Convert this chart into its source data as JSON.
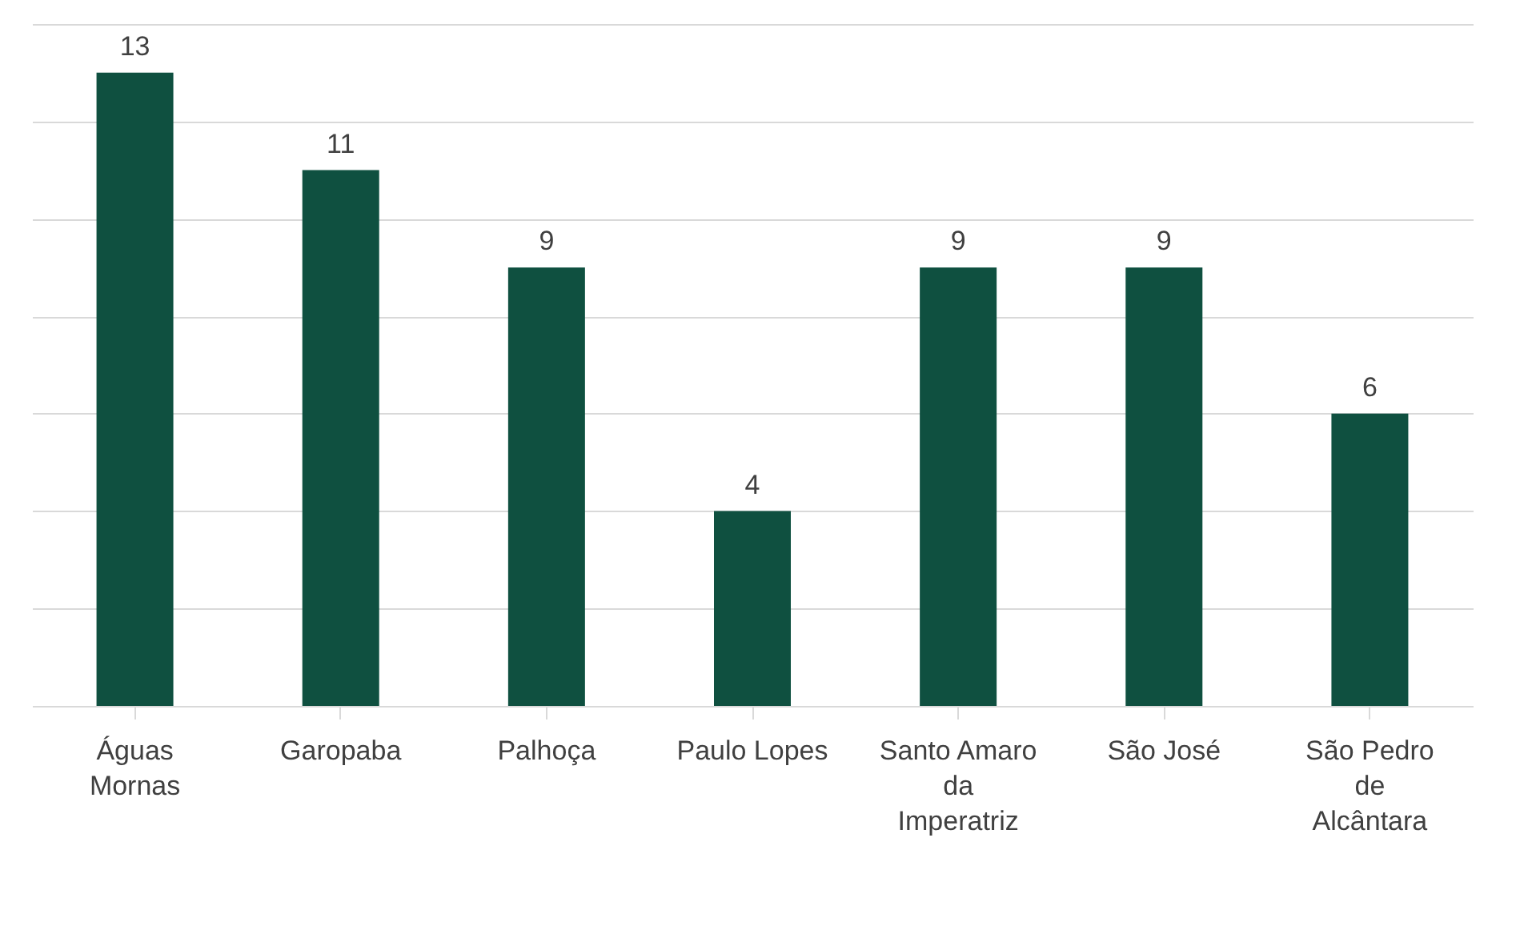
{
  "chart_data": {
    "type": "bar",
    "categories": [
      "Águas Mornas",
      "Garopaba",
      "Palhoça",
      "Paulo Lopes",
      "Santo Amaro da Imperatriz",
      "São José",
      "São Pedro de Alcântara"
    ],
    "values": [
      13,
      11,
      9,
      4,
      9,
      9,
      6
    ],
    "color": "#0f5040",
    "data_labels": true,
    "ylim": [
      0,
      14
    ],
    "yticks": [
      {
        "value": 0,
        "label": null
      },
      {
        "value": 2,
        "label": null
      },
      {
        "value": 4,
        "label": null
      },
      {
        "value": 6,
        "label": null
      },
      {
        "value": 8,
        "label": null
      },
      {
        "value": 10,
        "label": null
      },
      {
        "value": 12,
        "label": null
      },
      {
        "value": 14,
        "label": null
      }
    ],
    "grid": "y",
    "tick_labels": "x"
  }
}
